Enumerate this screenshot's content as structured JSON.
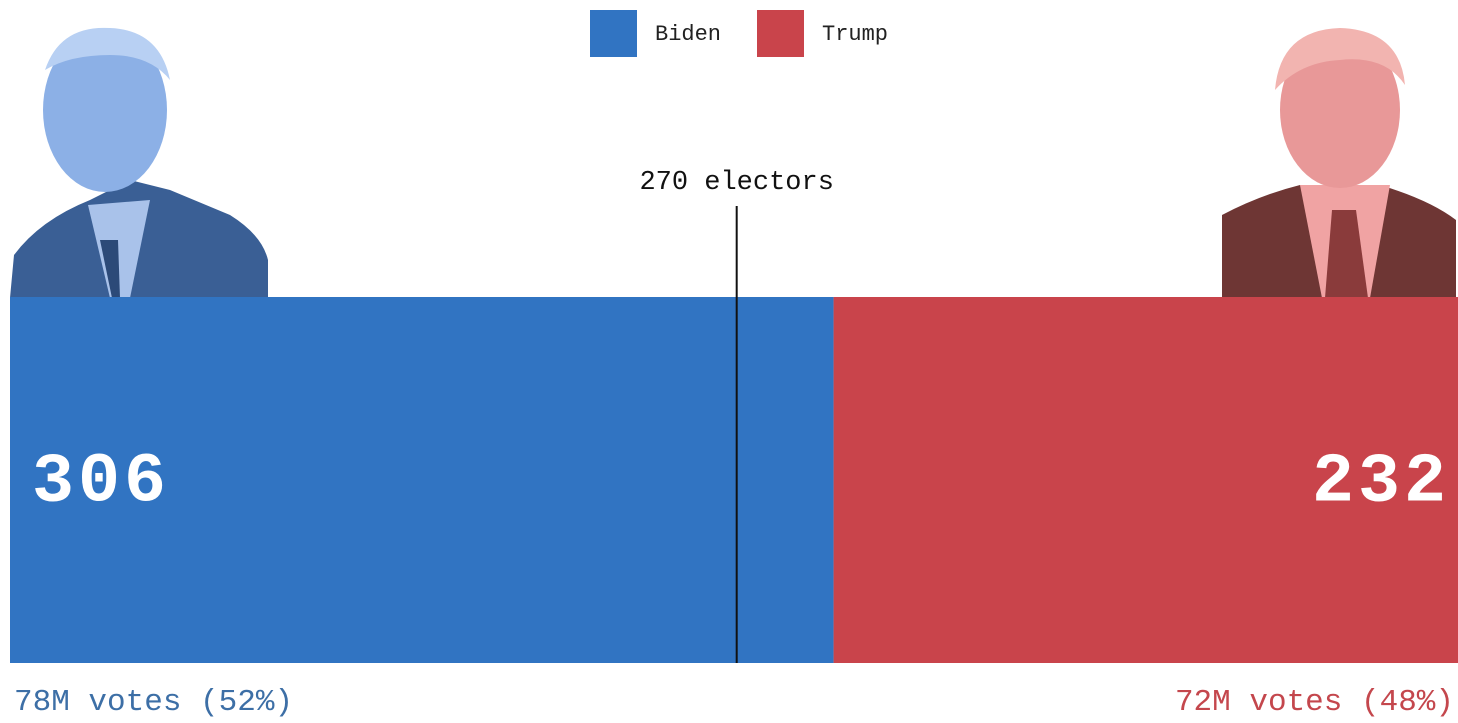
{
  "chart_data": {
    "type": "stacked-bar",
    "series": [
      {
        "name": "Biden",
        "color": "#3174c2",
        "values": [
          306
        ],
        "vote_label": "78M votes (52%)",
        "label_color": "#3d6fa6"
      },
      {
        "name": "Trump",
        "color": "#c9444b",
        "values": [
          232
        ],
        "vote_label": "72M votes (48%)",
        "label_color": "#c4474d"
      }
    ],
    "xlim": [
      0,
      538
    ],
    "annotations": [
      {
        "value": 270,
        "label": "270 electors"
      }
    ]
  }
}
